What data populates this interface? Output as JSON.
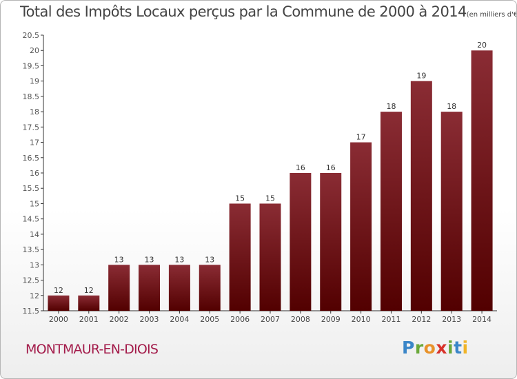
{
  "chart_data": {
    "type": "bar",
    "title": "Total des Impôts Locaux perçus par la Commune de 2000 à 2014",
    "title_unit": "(en milliers d'€)",
    "categories": [
      "2000",
      "2001",
      "2002",
      "2003",
      "2004",
      "2005",
      "2006",
      "2007",
      "2008",
      "2009",
      "2010",
      "2011",
      "2012",
      "2013",
      "2014"
    ],
    "values": [
      12,
      12,
      13,
      13,
      13,
      13,
      15,
      15,
      16,
      16,
      17,
      18,
      19,
      18,
      20
    ],
    "ylim": [
      11.5,
      20.5
    ],
    "yticks": [
      "11.5",
      "12",
      "12.5",
      "13",
      "13.5",
      "14",
      "14.5",
      "15",
      "15.5",
      "16",
      "16.5",
      "17",
      "17.5",
      "18",
      "18.5",
      "19",
      "19.5",
      "20",
      "20.5"
    ],
    "xlabel": "",
    "ylabel": "",
    "bar_color_top": "#8a2c34",
    "bar_color_bottom": "#520000"
  },
  "commune_name": "MONTMAUR-EN-DIOIS",
  "logo": {
    "letters": [
      "P",
      "r",
      "o",
      "x",
      "i",
      "t",
      "i"
    ],
    "colors": [
      "#3a86c8",
      "#6aa83a",
      "#e8922a",
      "#d8322a",
      "#6aa83a",
      "#3a86c8",
      "#f0b428"
    ]
  }
}
